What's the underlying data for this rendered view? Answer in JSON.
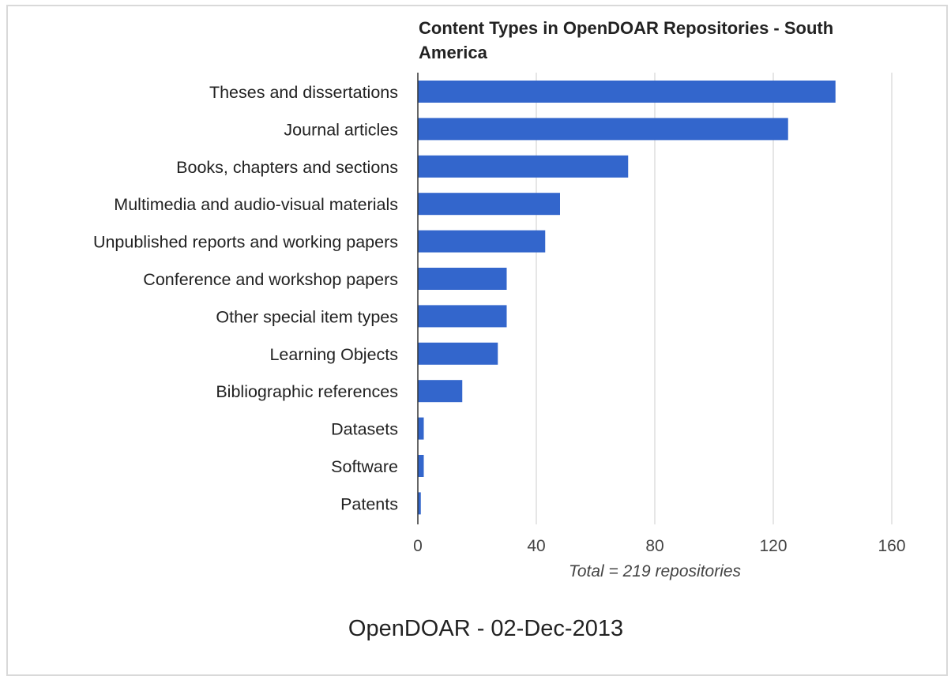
{
  "chart_data": {
    "type": "bar",
    "orientation": "horizontal",
    "title": "Content Types in OpenDOAR Repositories - South America",
    "xlabel": "Total = 219 repositories",
    "ylabel": "",
    "categories": [
      "Theses and dissertations",
      "Journal articles",
      "Books, chapters and sections",
      "Multimedia and audio-visual materials",
      "Unpublished reports and working papers",
      "Conference and workshop papers",
      "Other special item types",
      "Learning Objects",
      "Bibliographic references",
      "Datasets",
      "Software",
      "Patents"
    ],
    "values": [
      141,
      125,
      71,
      48,
      43,
      30,
      30,
      27,
      15,
      2,
      2,
      1
    ],
    "xlim": [
      0,
      160
    ],
    "xticks": [
      0,
      40,
      80,
      120,
      160
    ],
    "grid": true,
    "legend": "none",
    "bar_color": "#3366cc",
    "grid_color": "#cccccc",
    "axis_color": "#333333",
    "label_color": "#222222"
  },
  "footer": {
    "caption": "OpenDOAR - 02-Dec-2013"
  }
}
